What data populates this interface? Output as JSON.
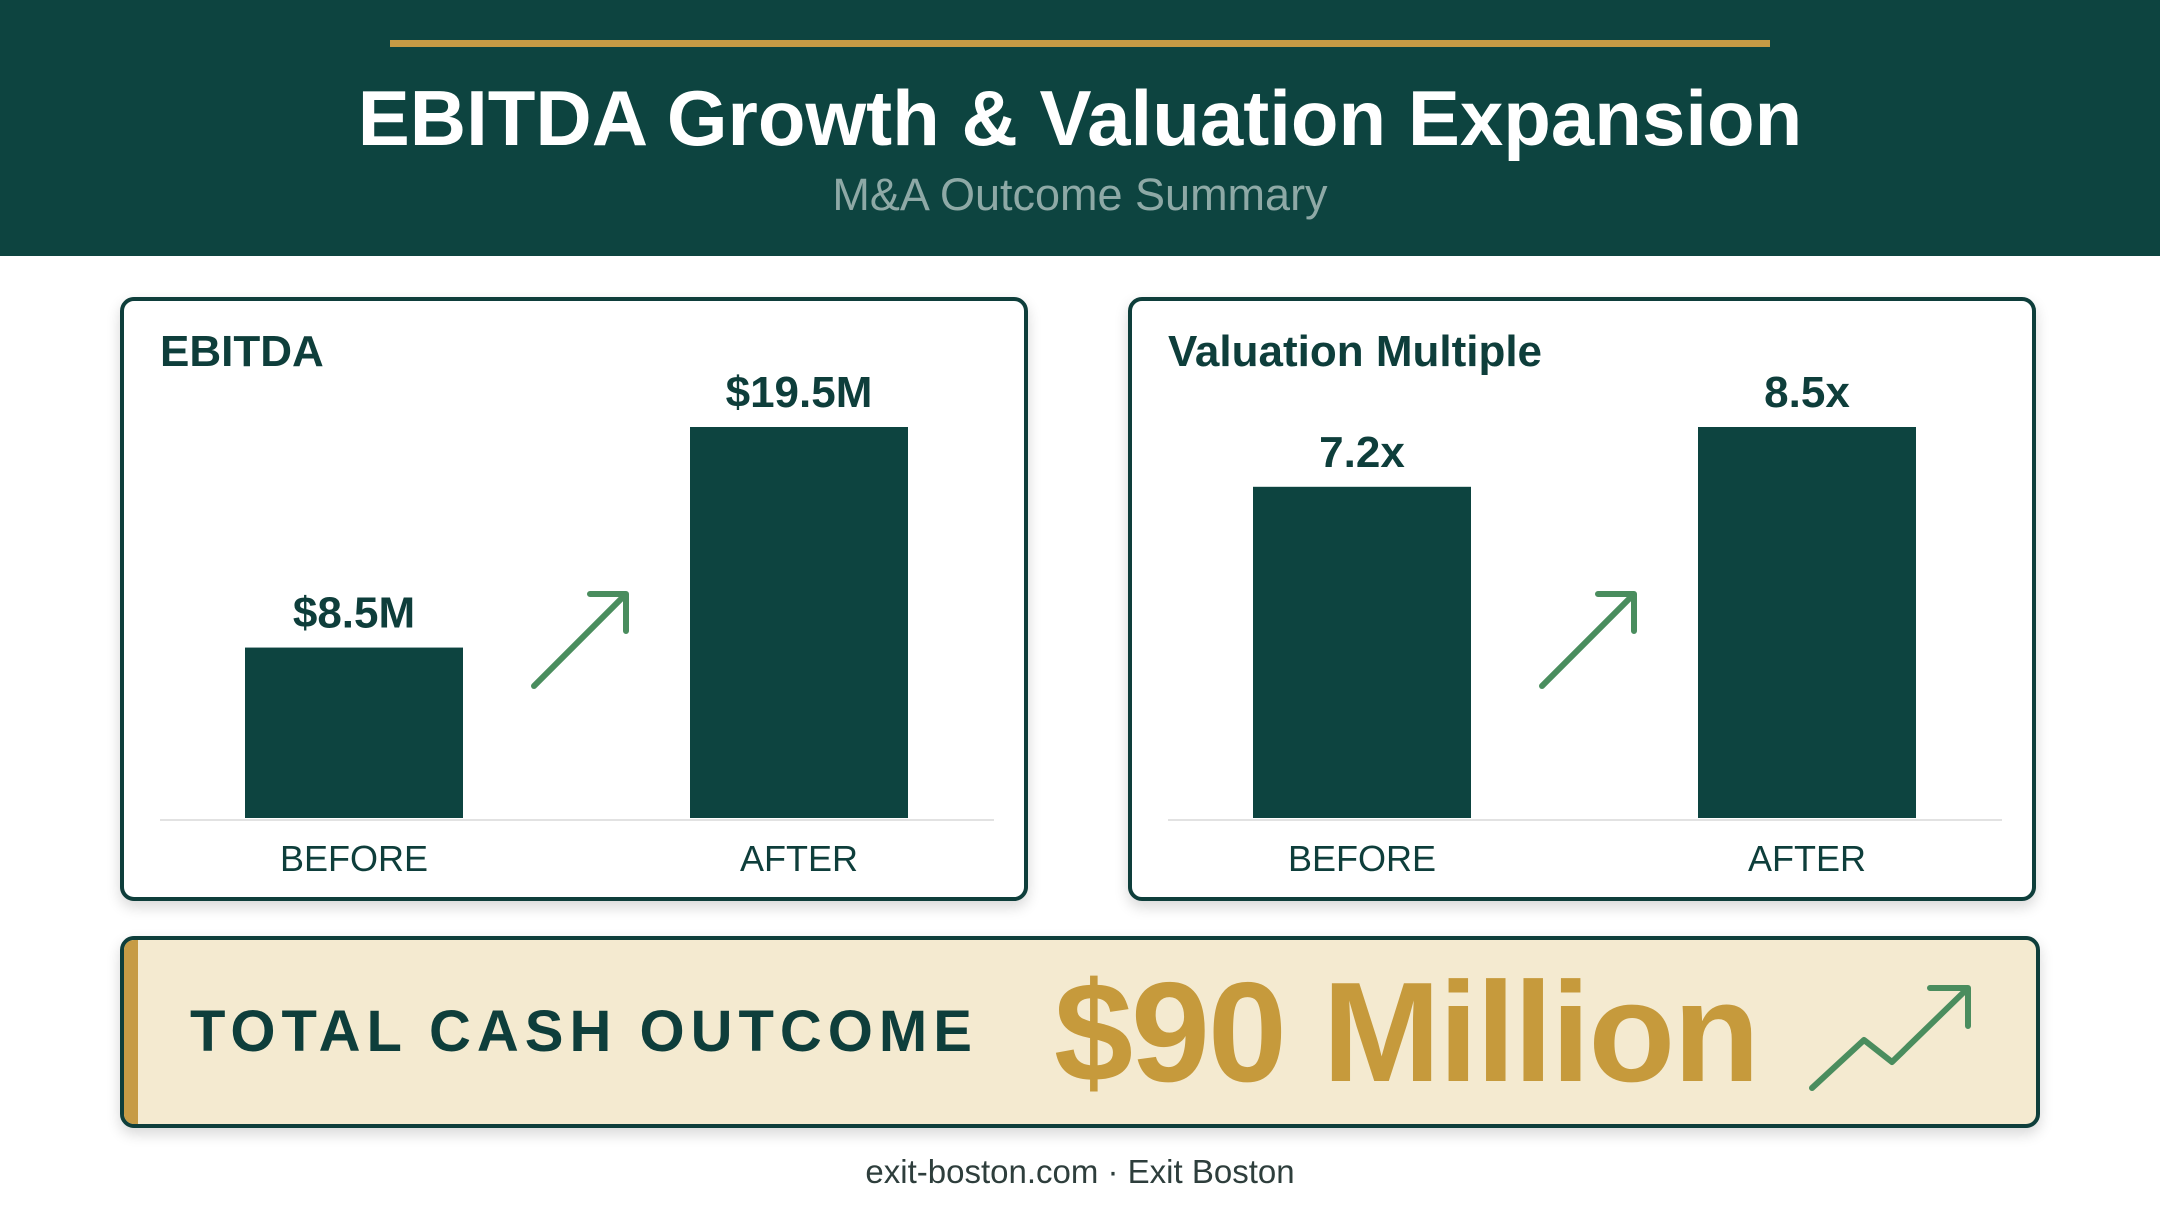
{
  "header": {
    "title": "EBITDA Growth & Valuation Expansion",
    "subtitle": "M&A Outcome Summary"
  },
  "colors": {
    "header_bg": "#0d4440",
    "bar": "#0d4440",
    "gold": "#c69b45",
    "arrow": "#4a8d5e",
    "banner_bg": "#f4ead0"
  },
  "chart_data": [
    {
      "type": "bar",
      "title": "EBITDA",
      "categories": [
        "BEFORE",
        "AFTER"
      ],
      "values": [
        8.5,
        19.5
      ],
      "value_labels": [
        "$8.5M",
        "$19.5M"
      ],
      "unit": "$M",
      "ylim": [
        0,
        19.5
      ],
      "grid": false,
      "trend_arrow": "up"
    },
    {
      "type": "bar",
      "title": "Valuation Multiple",
      "categories": [
        "BEFORE",
        "AFTER"
      ],
      "values": [
        7.2,
        8.5
      ],
      "value_labels": [
        "7.2x",
        "8.5x"
      ],
      "unit": "x",
      "ylim": [
        0,
        8.5
      ],
      "grid": false,
      "trend_arrow": "up"
    }
  ],
  "summary": {
    "label": "TOTAL CASH OUTCOME",
    "value": "$90 Million",
    "icon": "trend-up-icon"
  },
  "footer": {
    "text": "exit-boston.com · Exit Boston"
  }
}
